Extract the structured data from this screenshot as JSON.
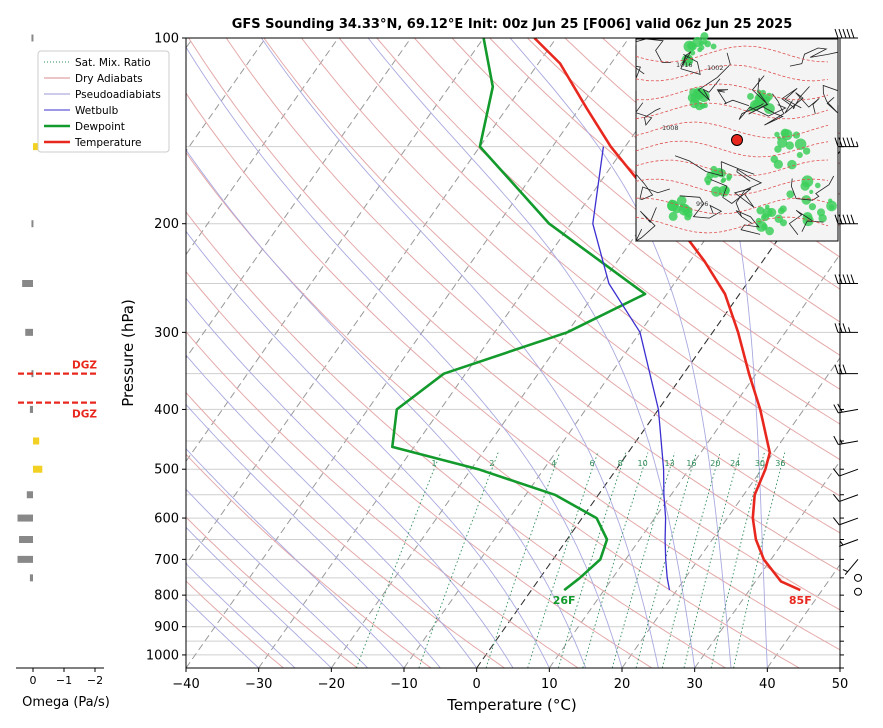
{
  "chart_data": {
    "type": "line",
    "title": "GFS Sounding 34.33°N, 69.12°E Init: 00z Jun 25 [F006] valid 06z Jun 25 2025",
    "xlabel": "Temperature (°C)",
    "ylabel": "Pressure (hPa)",
    "xlim": [
      -40,
      50
    ],
    "ylim": [
      1050,
      100
    ],
    "y_scale": "log",
    "skew": true,
    "xticks": [
      "−40",
      "−30",
      "−20",
      "−10",
      "0",
      "10",
      "20",
      "30",
      "40",
      "50"
    ],
    "yticks": [
      "100",
      "200",
      "300",
      "400",
      "500",
      "600",
      "700",
      "800",
      "900",
      "1000"
    ],
    "mixing_ratio_labels": [
      "1",
      "2",
      "4",
      "6",
      "8",
      "10",
      "13",
      "16",
      "20",
      "24",
      "30",
      "36"
    ],
    "legend": {
      "placement": "top-left",
      "entries": [
        {
          "label": "Sat. Mix. Ratio",
          "color": "#2e8b57",
          "style": "dotted"
        },
        {
          "label": "Dry Adiabats",
          "color": "#d98c8c",
          "style": "solid"
        },
        {
          "label": "Pseudoadiabiats",
          "color": "#9a9ad6",
          "style": "solid"
        },
        {
          "label": "Wetbulb",
          "color": "#3b2fd0",
          "style": "solid"
        },
        {
          "label": "Dewpoint",
          "color": "#139a2c",
          "style": "solid"
        },
        {
          "label": "Temperature",
          "color": "#e8281e",
          "style": "solid"
        }
      ]
    },
    "series": [
      {
        "name": "Temperature",
        "color": "#e8281e",
        "points": [
          [
            785,
            37
          ],
          [
            760,
            33.5
          ],
          [
            700,
            29
          ],
          [
            650,
            26
          ],
          [
            600,
            23.5
          ],
          [
            550,
            21.5
          ],
          [
            500,
            20.5
          ],
          [
            470,
            19.5
          ],
          [
            400,
            14
          ],
          [
            350,
            9
          ],
          [
            300,
            3.5
          ],
          [
            260,
            -2
          ],
          [
            230,
            -8
          ],
          [
            200,
            -15.5
          ],
          [
            170,
            -25
          ],
          [
            150,
            -32
          ],
          [
            130,
            -39
          ],
          [
            110,
            -47
          ],
          [
            100,
            -53
          ]
        ]
      },
      {
        "name": "Dewpoint",
        "color": "#139a2c",
        "points": [
          [
            785,
            4.5
          ],
          [
            750,
            5.5
          ],
          [
            700,
            6.5
          ],
          [
            650,
            5.5
          ],
          [
            600,
            2
          ],
          [
            550,
            -6
          ],
          [
            500,
            -19
          ],
          [
            460,
            -33
          ],
          [
            400,
            -36
          ],
          [
            350,
            -33
          ],
          [
            300,
            -20
          ],
          [
            260,
            -13
          ],
          [
            200,
            -33
          ],
          [
            150,
            -50
          ],
          [
            120,
            -54
          ],
          [
            100,
            -60
          ]
        ]
      },
      {
        "name": "Wetbulb",
        "color": "#3b2fd0",
        "points": [
          [
            785,
            19
          ],
          [
            750,
            17.5
          ],
          [
            700,
            15.5
          ],
          [
            650,
            13.5
          ],
          [
            600,
            11.5
          ],
          [
            550,
            9
          ],
          [
            500,
            6.5
          ],
          [
            400,
            0
          ],
          [
            300,
            -10
          ],
          [
            250,
            -19
          ],
          [
            200,
            -27
          ],
          [
            150,
            -33
          ]
        ]
      }
    ],
    "annotations": {
      "surface_dewpoint": "26F",
      "surface_temperature": "85F"
    },
    "dgz_label": "DGZ",
    "dgz_bounds_hpa": [
      350,
      390
    ],
    "omega": {
      "xlabel": "Omega (Pa/s)",
      "xticks": [
        "0",
        "−1",
        "−2"
      ],
      "bars": [
        {
          "p": 100,
          "value": -0.05
        },
        {
          "p": 150,
          "value": 0.15
        },
        {
          "p": 200,
          "value": -0.05
        },
        {
          "p": 250,
          "value": -0.35
        },
        {
          "p": 300,
          "value": -0.25
        },
        {
          "p": 350,
          "value": -0.05
        },
        {
          "p": 400,
          "value": -0.1
        },
        {
          "p": 450,
          "value": 0.2
        },
        {
          "p": 500,
          "value": 0.3
        },
        {
          "p": 550,
          "value": -0.2
        },
        {
          "p": 600,
          "value": -0.5
        },
        {
          "p": 650,
          "value": -0.45
        },
        {
          "p": 700,
          "value": -0.5
        },
        {
          "p": 750,
          "value": -0.1
        }
      ]
    },
    "wind_barbs": [
      {
        "p": 100,
        "dir": 270,
        "kt": 50
      },
      {
        "p": 150,
        "dir": 270,
        "kt": 55
      },
      {
        "p": 200,
        "dir": 270,
        "kt": 50
      },
      {
        "p": 250,
        "dir": 270,
        "kt": 50
      },
      {
        "p": 300,
        "dir": 270,
        "kt": 35
      },
      {
        "p": 350,
        "dir": 270,
        "kt": 30
      },
      {
        "p": 400,
        "dir": 260,
        "kt": 20
      },
      {
        "p": 450,
        "dir": 260,
        "kt": 15
      },
      {
        "p": 500,
        "dir": 250,
        "kt": 10
      },
      {
        "p": 550,
        "dir": 250,
        "kt": 10
      },
      {
        "p": 600,
        "dir": 250,
        "kt": 10
      },
      {
        "p": 650,
        "dir": 250,
        "kt": 5
      },
      {
        "p": 700,
        "dir": 220,
        "kt": 5
      },
      {
        "p": 750,
        "dir": 0,
        "kt": 0
      },
      {
        "p": 790,
        "dir": 0,
        "kt": 0
      }
    ],
    "inset_map": {
      "labels": [
        "1016",
        "1008",
        "1002",
        "996"
      ]
    }
  }
}
